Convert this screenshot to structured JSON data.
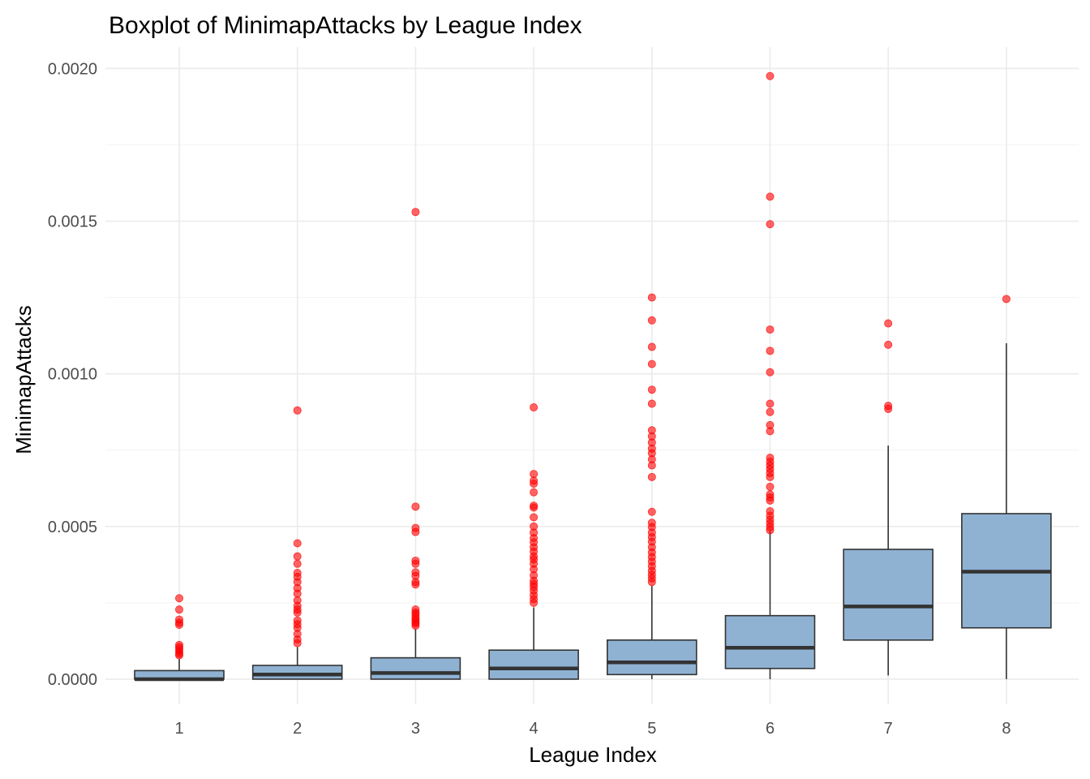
{
  "chart_data": {
    "type": "boxplot",
    "title": "Boxplot of MinimapAttacks by League Index",
    "xlabel": "League Index",
    "ylabel": "MinimapAttacks",
    "categories": [
      "1",
      "2",
      "3",
      "4",
      "5",
      "6",
      "7",
      "8"
    ],
    "ylim": [
      -8.25e-05,
      0.00207
    ],
    "yticks": [
      0.0,
      0.0005,
      0.001,
      0.0015,
      0.002
    ],
    "ytick_labels": [
      "0.0000",
      "0.0005",
      "0.0010",
      "0.0015",
      "0.0020"
    ],
    "grid": true,
    "box_fill": "#8fb2d3",
    "box_stroke": "#333333",
    "outlier_color": "#ff0000",
    "boxes": [
      {
        "category": "1",
        "lower_whisker": 0.0,
        "q1": 0.0,
        "median": 0.0,
        "q3": 2.8e-05,
        "upper_whisker": 6.5e-05,
        "outliers": [
          0.000265,
          0.000228,
          0.000195,
          0.000185,
          0.000178,
          0.000112,
          0.000105,
          9.8e-05,
          9e-05,
          8.3e-05,
          7.8e-05
        ]
      },
      {
        "category": "2",
        "lower_whisker": 0.0,
        "q1": 0.0,
        "median": 1.5e-05,
        "q3": 4.5e-05,
        "upper_whisker": 0.000105,
        "outliers": [
          0.00088,
          0.000445,
          0.000402,
          0.000378,
          0.000348,
          0.000335,
          0.000318,
          0.000298,
          0.00028,
          0.000258,
          0.00024,
          0.000228,
          0.000218,
          0.000192,
          0.00018,
          0.000168,
          0.000148,
          0.00013,
          0.000118
        ]
      },
      {
        "category": "3",
        "lower_whisker": 0.0,
        "q1": 0.0,
        "median": 2e-05,
        "q3": 7e-05,
        "upper_whisker": 0.000165,
        "outliers": [
          0.00153,
          0.000565,
          0.000495,
          0.000482,
          0.000388,
          0.000378,
          0.00035,
          0.000338,
          0.000318,
          0.00031,
          0.000228,
          0.000218,
          0.000212,
          0.000202,
          0.000195,
          0.000188,
          0.000182,
          0.000175
        ]
      },
      {
        "category": "4",
        "lower_whisker": 0.0,
        "q1": 0.0,
        "median": 3.5e-05,
        "q3": 9.5e-05,
        "upper_whisker": 0.000235,
        "outliers": [
          0.00089,
          0.000672,
          0.00065,
          0.00064,
          0.000612,
          0.000568,
          0.000562,
          0.00053,
          0.0005,
          0.00048,
          0.000462,
          0.000448,
          0.000432,
          0.000418,
          0.000402,
          0.000392,
          0.000378,
          0.00036,
          0.00034,
          0.000322,
          0.000312,
          0.000302,
          0.00029,
          0.000275,
          0.000262,
          0.00025
        ]
      },
      {
        "category": "5",
        "lower_whisker": 0.0,
        "q1": 1.5e-05,
        "median": 5.5e-05,
        "q3": 0.000128,
        "upper_whisker": 0.000305,
        "outliers": [
          0.00125,
          0.001175,
          0.001088,
          0.001032,
          0.000948,
          0.000902,
          0.000815,
          0.000795,
          0.000775,
          0.000755,
          0.00074,
          0.00072,
          0.0007,
          0.000662,
          0.000548,
          0.000512,
          0.000498,
          0.00048,
          0.000465,
          0.00045,
          0.000432,
          0.000415,
          0.0004,
          0.000385,
          0.00037,
          0.000355,
          0.000342,
          0.00033,
          0.000318
        ]
      },
      {
        "category": "6",
        "lower_whisker": 0.0,
        "q1": 3.5e-05,
        "median": 0.000103,
        "q3": 0.000208,
        "upper_whisker": 0.000485,
        "outliers": [
          0.001975,
          0.00158,
          0.00149,
          0.001145,
          0.001075,
          0.001005,
          0.000902,
          0.000875,
          0.000832,
          0.000812,
          0.000725,
          0.000712,
          0.0007,
          0.000688,
          0.000675,
          0.000662,
          0.00063,
          0.000605,
          0.000595,
          0.000585,
          0.00055,
          0.000535,
          0.000522,
          0.00051,
          0.000498,
          0.000488
        ]
      },
      {
        "category": "7",
        "lower_whisker": 1.2e-05,
        "q1": 0.000128,
        "median": 0.000238,
        "q3": 0.000425,
        "upper_whisker": 0.000765,
        "outliers": [
          0.001165,
          0.001095,
          0.000895,
          0.000885
        ]
      },
      {
        "category": "8",
        "lower_whisker": 0.0,
        "q1": 0.000168,
        "median": 0.000352,
        "q3": 0.000542,
        "upper_whisker": 0.0011,
        "outliers": [
          0.001245
        ]
      }
    ]
  }
}
